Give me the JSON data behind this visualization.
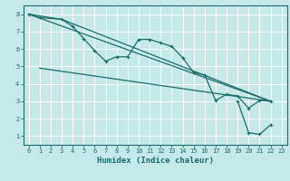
{
  "xlabel": "Humidex (Indice chaleur)",
  "xlim": [
    -0.5,
    23.5
  ],
  "ylim": [
    0.5,
    8.5
  ],
  "yticks": [
    1,
    2,
    3,
    4,
    5,
    6,
    7,
    8
  ],
  "xticks": [
    0,
    1,
    2,
    3,
    4,
    5,
    6,
    7,
    8,
    9,
    10,
    11,
    12,
    13,
    14,
    15,
    16,
    17,
    18,
    19,
    20,
    21,
    22,
    23
  ],
  "bg_color": "#c5e8e8",
  "grid_color": "#ffffff",
  "line_color": "#1a6b6b",
  "line1_x": [
    0,
    1,
    3,
    4,
    5,
    6,
    7,
    8,
    9,
    10,
    11,
    12,
    13,
    14,
    15,
    16,
    17,
    18,
    19,
    20,
    21,
    22
  ],
  "line1_y": [
    8.0,
    7.8,
    7.7,
    7.3,
    6.6,
    5.9,
    5.3,
    5.55,
    5.55,
    6.55,
    6.55,
    6.35,
    6.15,
    5.5,
    4.65,
    4.5,
    3.05,
    3.4,
    3.3,
    2.6,
    3.05,
    3.0
  ],
  "line2_x": [
    0,
    22
  ],
  "line2_y": [
    8.0,
    3.0
  ],
  "line3_x": [
    1,
    22
  ],
  "line3_y": [
    4.9,
    3.0
  ],
  "line4_x": [
    0,
    3,
    22
  ],
  "line4_y": [
    8.0,
    7.7,
    3.0
  ],
  "line5_x": [
    19,
    20,
    21,
    22
  ],
  "line5_y": [
    3.0,
    1.2,
    1.1,
    1.65
  ]
}
